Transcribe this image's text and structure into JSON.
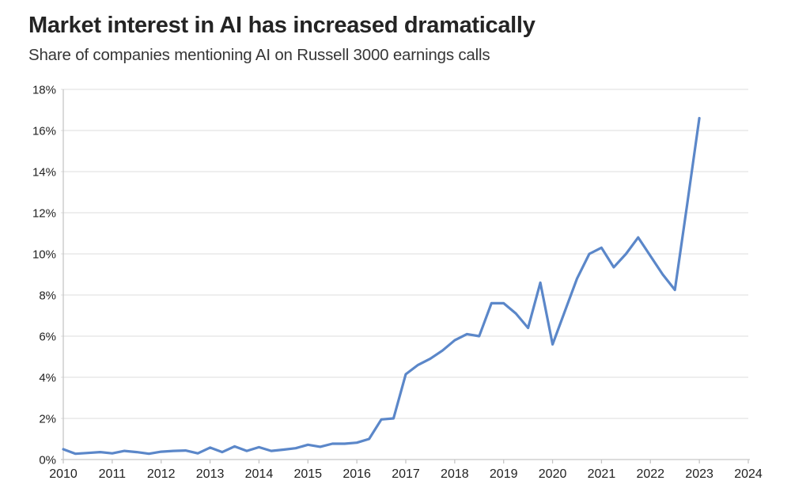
{
  "chart_data": {
    "type": "line",
    "title": "Market interest in AI has increased dramatically",
    "subtitle": "Share of companies mentioning AI on Russell 3000 earnings calls",
    "series_name": "Share of companies mentioning AI on earnings calls (%)",
    "x": [
      2010.0,
      2010.25,
      2010.5,
      2010.75,
      2011.0,
      2011.25,
      2011.5,
      2011.75,
      2012.0,
      2012.25,
      2012.5,
      2012.75,
      2013.0,
      2013.25,
      2013.5,
      2013.75,
      2014.0,
      2014.25,
      2014.5,
      2014.75,
      2015.0,
      2015.25,
      2015.5,
      2015.75,
      2016.0,
      2016.25,
      2016.5,
      2016.75,
      2017.0,
      2017.25,
      2017.5,
      2017.75,
      2018.0,
      2018.25,
      2018.5,
      2018.75,
      2019.0,
      2019.25,
      2019.5,
      2019.75,
      2020.0,
      2020.25,
      2020.5,
      2020.75,
      2021.0,
      2021.25,
      2021.5,
      2021.75,
      2022.0,
      2022.25,
      2022.5,
      2022.75,
      2023.0
    ],
    "values": [
      0.5,
      0.28,
      0.32,
      0.36,
      0.3,
      0.42,
      0.36,
      0.28,
      0.38,
      0.42,
      0.44,
      0.3,
      0.58,
      0.36,
      0.64,
      0.42,
      0.6,
      0.42,
      0.48,
      0.55,
      0.72,
      0.62,
      0.77,
      0.77,
      0.82,
      1.0,
      1.95,
      2.0,
      4.15,
      4.6,
      4.9,
      5.3,
      5.8,
      6.1,
      6.0,
      7.6,
      7.6,
      7.1,
      6.4,
      8.6,
      5.6,
      7.2,
      8.8,
      10.0,
      10.3,
      9.35,
      10.0,
      10.8,
      9.9,
      9.0,
      8.25,
      12.4,
      16.6
    ],
    "xlim": [
      2010,
      2024
    ],
    "ylim": [
      0,
      18
    ],
    "x_ticks": [
      2010,
      2011,
      2012,
      2013,
      2014,
      2015,
      2016,
      2017,
      2018,
      2019,
      2020,
      2021,
      2022,
      2023,
      2024
    ],
    "x_tick_labels": [
      "2010",
      "2011",
      "2012",
      "2013",
      "2014",
      "2015",
      "2016",
      "2017",
      "2018",
      "2019",
      "2020",
      "2021",
      "2022",
      "2023",
      "2024"
    ],
    "y_ticks": [
      0,
      2,
      4,
      6,
      8,
      10,
      12,
      14,
      16,
      18
    ],
    "y_tick_labels": [
      "0%",
      "2%",
      "4%",
      "6%",
      "8%",
      "10%",
      "12%",
      "14%",
      "16%",
      "18%"
    ],
    "grid": "horizontal",
    "legend": "none",
    "colors": {
      "line": "#5b87c9",
      "gridline": "#e4e4e4",
      "axis": "#c6c6c6",
      "tick_text": "#1f1f1f"
    }
  }
}
